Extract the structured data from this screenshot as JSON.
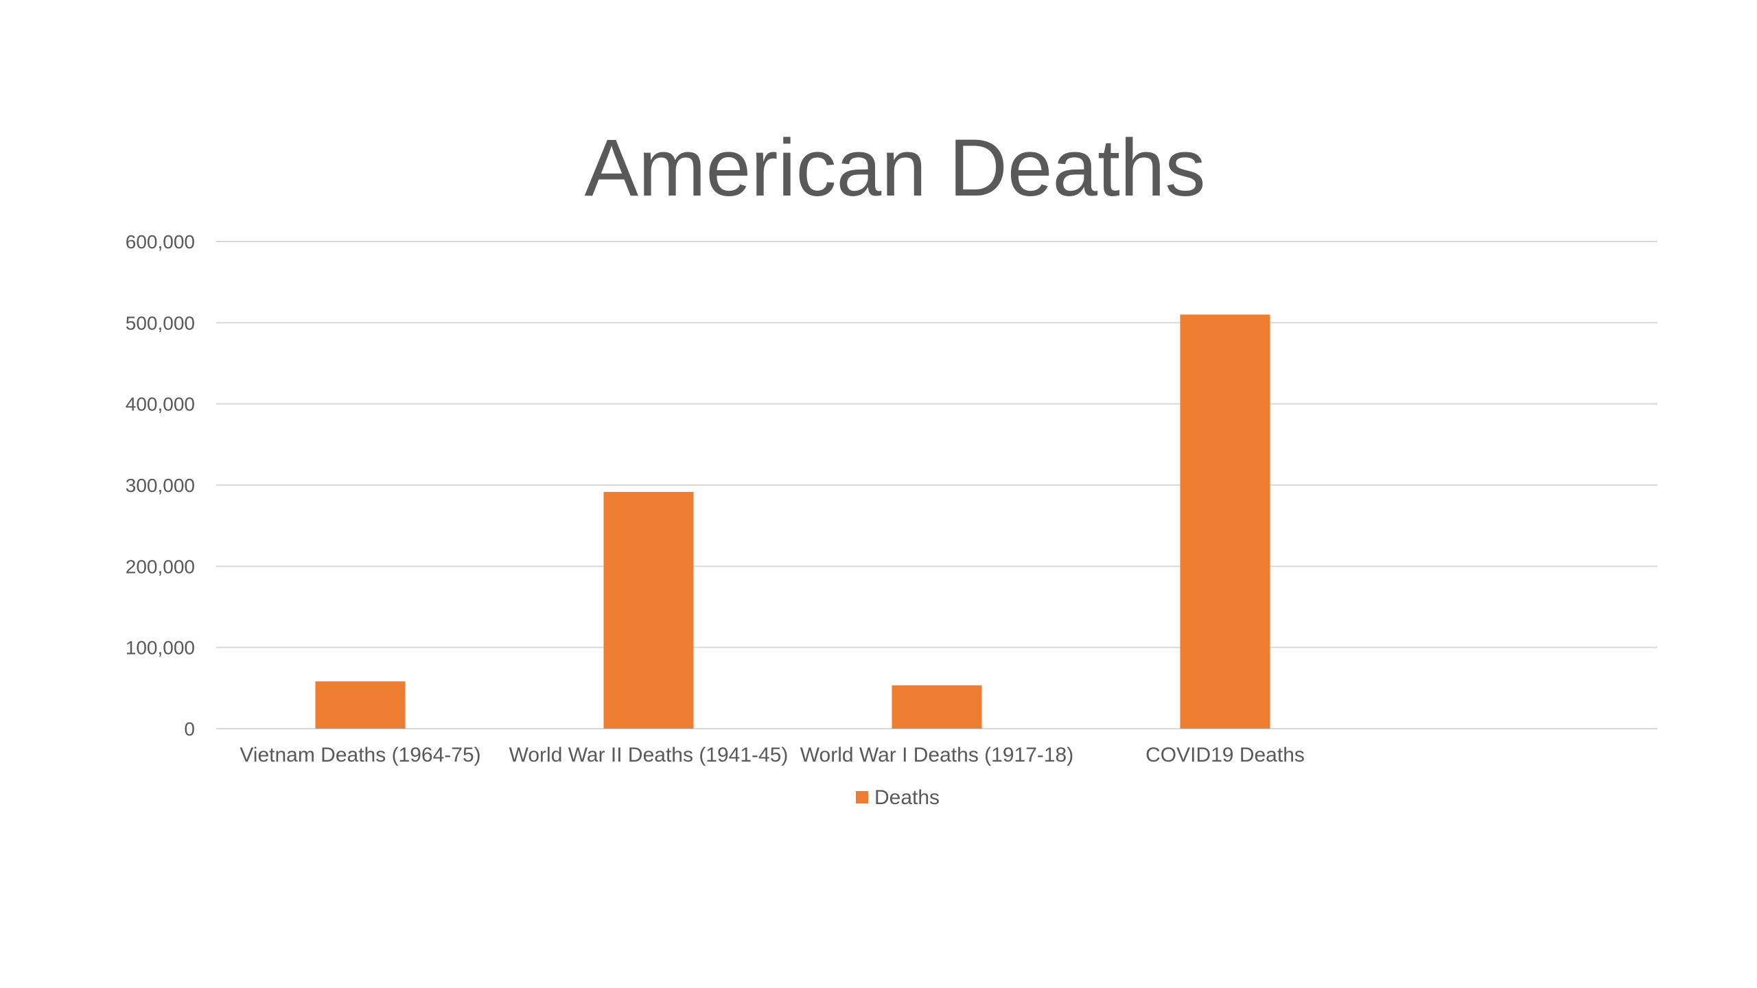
{
  "chart_data": {
    "type": "bar",
    "title": "American Deaths",
    "xlabel": "",
    "ylabel": "",
    "categories": [
      "Vietnam Deaths (1964-75)",
      "World War II Deaths (1941-45)",
      "World War I Deaths (1917-18)",
      "COVID19 Deaths",
      ""
    ],
    "series": [
      {
        "name": "Deaths",
        "color": "#ED7D31",
        "values": [
          58220,
          291557,
          53402,
          510000,
          null
        ]
      }
    ],
    "ylim": [
      0,
      600000
    ],
    "yticks": [
      0,
      100000,
      200000,
      300000,
      400000,
      500000,
      600000
    ],
    "ytick_labels": [
      "0",
      "100,000",
      "200,000",
      "300,000",
      "400,000",
      "500,000",
      "600,000"
    ],
    "grid": true,
    "legend": "bottom-center"
  }
}
